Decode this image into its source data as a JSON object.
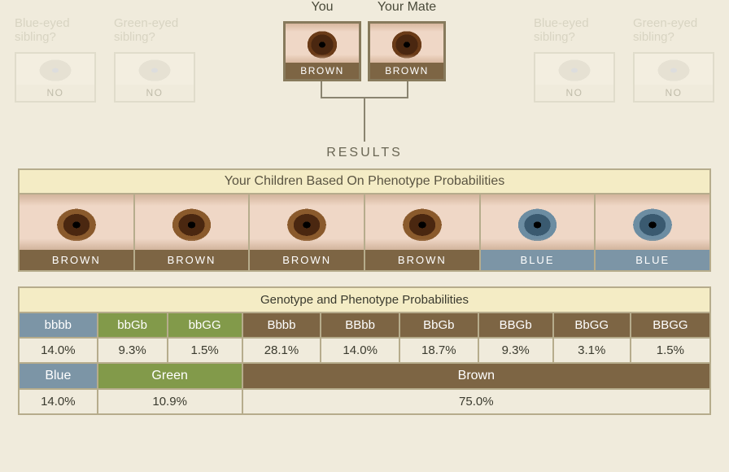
{
  "colors": {
    "bg": "#f0ebdc",
    "panel_border": "#b6ac8c",
    "panel_title_bg": "#f4ecc5",
    "brown": "#7d6544",
    "green": "#829a4a",
    "blue": "#7c95a6",
    "faded_text": "#d8d4c2",
    "text": "#5a5442"
  },
  "top": {
    "you_label": "You",
    "mate_label": "Your Mate",
    "you_color": "BROWN",
    "mate_color": "BROWN"
  },
  "siblings": {
    "left": [
      {
        "q": "Blue-eyed sibling?",
        "answer": "NO"
      },
      {
        "q": "Green-eyed sibling?",
        "answer": "NO"
      }
    ],
    "right": [
      {
        "q": "Blue-eyed sibling?",
        "answer": "NO"
      },
      {
        "q": "Green-eyed sibling?",
        "answer": "NO"
      }
    ]
  },
  "results_label": "RESULTS",
  "children": {
    "title": "Your Children Based On Phenotype Probabilities",
    "items": [
      {
        "label": "BROWN",
        "color": "#7d6544",
        "eye": "brown"
      },
      {
        "label": "BROWN",
        "color": "#7d6544",
        "eye": "brown"
      },
      {
        "label": "BROWN",
        "color": "#7d6544",
        "eye": "brown"
      },
      {
        "label": "BROWN",
        "color": "#7d6544",
        "eye": "brown"
      },
      {
        "label": "BLUE",
        "color": "#7c95a6",
        "eye": "blue"
      },
      {
        "label": "BLUE",
        "color": "#7c95a6",
        "eye": "blue"
      }
    ]
  },
  "geno": {
    "title": "Genotype and Phenotype Probabilities",
    "genotypes": [
      {
        "code": "bbbb",
        "pct": "14.0%",
        "group": "blue"
      },
      {
        "code": "bbGb",
        "pct": "9.3%",
        "group": "green"
      },
      {
        "code": "bbGG",
        "pct": "1.5%",
        "group": "green"
      },
      {
        "code": "Bbbb",
        "pct": "28.1%",
        "group": "brown"
      },
      {
        "code": "BBbb",
        "pct": "14.0%",
        "group": "brown"
      },
      {
        "code": "BbGb",
        "pct": "18.7%",
        "group": "brown"
      },
      {
        "code": "BBGb",
        "pct": "9.3%",
        "group": "brown"
      },
      {
        "code": "BbGG",
        "pct": "3.1%",
        "group": "brown"
      },
      {
        "code": "BBGG",
        "pct": "1.5%",
        "group": "brown"
      }
    ],
    "phenotypes": [
      {
        "label": "Blue",
        "span": 1,
        "pct": "14.0%",
        "color": "#7c95a6"
      },
      {
        "label": "Green",
        "span": 2,
        "pct": "10.9%",
        "color": "#829a4a"
      },
      {
        "label": "Brown",
        "span": 6,
        "pct": "75.0%",
        "color": "#7d6544"
      }
    ],
    "group_colors": {
      "blue": "#7c95a6",
      "green": "#829a4a",
      "brown": "#7d6544"
    }
  }
}
